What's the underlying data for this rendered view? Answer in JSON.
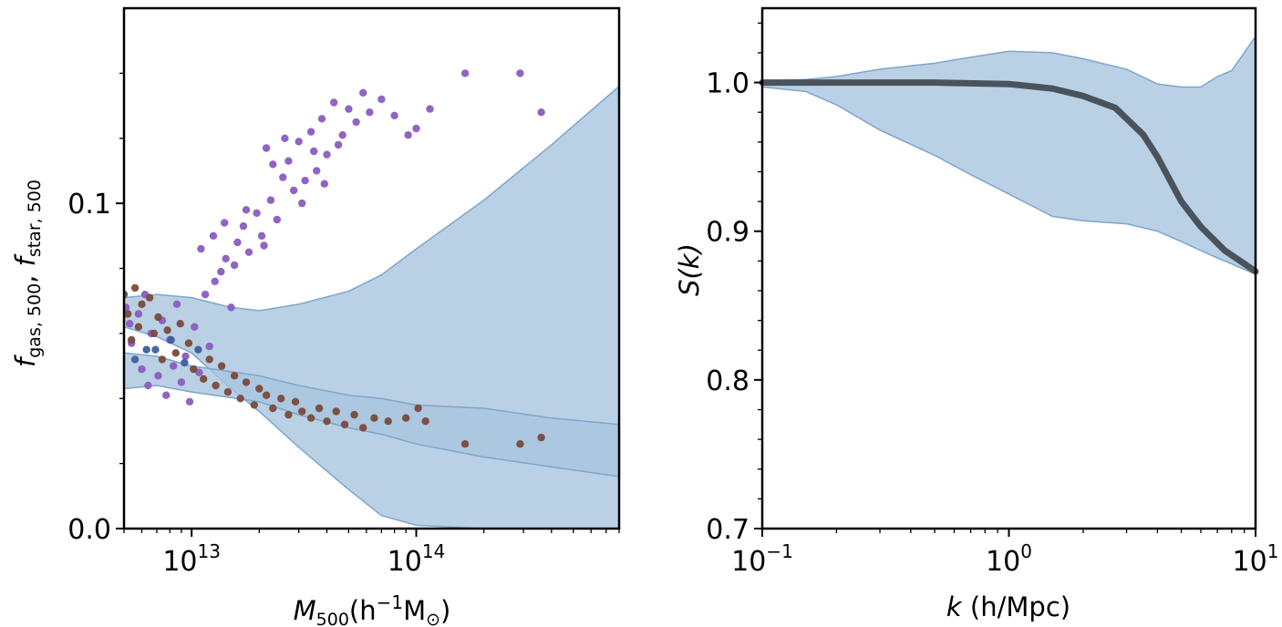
{
  "chart_data": [
    {
      "type": "scatter",
      "xscale": "log",
      "xlim": [
        5000000000000.0,
        800000000000000.0
      ],
      "ylim": [
        0.0,
        0.16
      ],
      "xticks": [
        {
          "value": 10000000000000.0,
          "base": "10",
          "exp": "13"
        },
        {
          "value": 100000000000000.0,
          "base": "10",
          "exp": "14"
        }
      ],
      "yticks": [
        {
          "value": 0.0,
          "label": "0.0"
        },
        {
          "value": 0.1,
          "label": "0.1"
        }
      ],
      "xlabel": {
        "main": "M",
        "sub": "500",
        "open": "(h",
        "exp": "−1",
        "unit": "M",
        "unit_sub": "⊙",
        "close": ")"
      },
      "ylabel": {
        "f1": "f",
        "sub1": "gas, 500",
        "sep": ",  ",
        "f2": "f",
        "sub2": "star, 500"
      },
      "colors": {
        "band": "#a9c4df",
        "band_edge": "#7fa6cc",
        "star_points": "#8a5cc0",
        "gas_points": "#7a4a3a",
        "overlap_points": "#3e5f9a"
      },
      "bands": [
        {
          "name": "gas-fraction-band",
          "x": [
            5000000000000.0,
            7000000000000.0,
            10000000000000.0,
            15000000000000.0,
            20000000000000.0,
            30000000000000.0,
            50000000000000.0,
            70000000000000.0,
            100000000000000.0,
            200000000000000.0,
            400000000000000.0,
            800000000000000.0
          ],
          "lower": [
            0.062,
            0.059,
            0.054,
            0.043,
            0.036,
            0.025,
            0.012,
            0.004,
            0.001,
            0.0,
            0.0,
            0.0
          ],
          "upper": [
            0.071,
            0.072,
            0.071,
            0.068,
            0.067,
            0.069,
            0.073,
            0.078,
            0.086,
            0.101,
            0.118,
            0.136
          ]
        },
        {
          "name": "star-fraction-band",
          "x": [
            5000000000000.0,
            7000000000000.0,
            10000000000000.0,
            20000000000000.0,
            30000000000000.0,
            50000000000000.0,
            70000000000000.0,
            100000000000000.0,
            200000000000000.0,
            400000000000000.0,
            800000000000000.0
          ],
          "lower": [
            0.043,
            0.044,
            0.042,
            0.039,
            0.035,
            0.031,
            0.029,
            0.026,
            0.022,
            0.019,
            0.016
          ],
          "upper": [
            0.054,
            0.053,
            0.05,
            0.047,
            0.044,
            0.041,
            0.04,
            0.038,
            0.037,
            0.034,
            0.032
          ]
        }
      ],
      "series": [
        {
          "name": "f_gas,500",
          "points": [
            [
              5100000000000.0,
              0.068
            ],
            [
              5300000000000.0,
              0.063
            ],
            [
              5400000000000.0,
              0.057
            ],
            [
              5600000000000.0,
              0.052
            ],
            [
              5800000000000.0,
              0.066
            ],
            [
              6000000000000.0,
              0.049
            ],
            [
              6200000000000.0,
              0.072
            ],
            [
              6400000000000.0,
              0.044
            ],
            [
              6600000000000.0,
              0.06
            ],
            [
              6900000000000.0,
              0.055
            ],
            [
              7100000000000.0,
              0.047
            ],
            [
              7400000000000.0,
              0.064
            ],
            [
              7700000000000.0,
              0.041
            ],
            [
              8000000000000.0,
              0.058
            ],
            [
              8300000000000.0,
              0.05
            ],
            [
              8600000000000.0,
              0.069
            ],
            [
              9000000000000.0,
              0.045
            ],
            [
              9400000000000.0,
              0.053
            ],
            [
              9800000000000.0,
              0.039
            ],
            [
              10300000000000.0,
              0.062
            ],
            [
              10800000000000.0,
              0.048
            ],
            [
              11500000000000.0,
              0.072
            ],
            [
              12000000000000.0,
              0.056
            ],
            [
              12700000000000.0,
              0.076
            ],
            [
              13500000000000.0,
              0.079
            ],
            [
              14200000000000.0,
              0.083
            ],
            [
              15000000000000.0,
              0.068
            ],
            [
              16000000000000.0,
              0.088
            ],
            [
              17000000000000.0,
              0.093
            ],
            [
              18000000000000.0,
              0.085
            ],
            [
              19500000000000.0,
              0.097
            ],
            [
              20500000000000.0,
              0.09
            ],
            [
              21500000000000.0,
              0.117
            ],
            [
              22500000000000.0,
              0.101
            ],
            [
              24000000000000.0,
              0.095
            ],
            [
              25500000000000.0,
              0.108
            ],
            [
              27000000000000.0,
              0.113
            ],
            [
              28500000000000.0,
              0.104
            ],
            [
              30000000000000.0,
              0.119
            ],
            [
              32000000000000.0,
              0.107
            ],
            [
              34000000000000.0,
              0.122
            ],
            [
              36000000000000.0,
              0.11
            ],
            [
              38000000000000.0,
              0.126
            ],
            [
              40000000000000.0,
              0.115
            ],
            [
              43000000000000.0,
              0.131
            ],
            [
              47000000000000.0,
              0.121
            ],
            [
              50000000000000.0,
              0.129
            ],
            [
              54000000000000.0,
              0.125
            ],
            [
              58000000000000.0,
              0.134
            ],
            [
              62000000000000.0,
              0.128
            ],
            [
              70000000000000.0,
              0.132
            ],
            [
              80000000000000.0,
              0.127
            ],
            [
              92000000000000.0,
              0.121
            ],
            [
              100000000000000.0,
              0.123
            ],
            [
              115000000000000.0,
              0.129
            ],
            [
              165000000000000.0,
              0.14
            ],
            [
              290000000000000.0,
              0.14
            ],
            [
              360000000000000.0,
              0.128
            ],
            [
              11000000000000.0,
              0.086
            ],
            [
              12500000000000.0,
              0.09
            ],
            [
              14000000000000.0,
              0.094
            ],
            [
              15500000000000.0,
              0.081
            ],
            [
              17500000000000.0,
              0.098
            ],
            [
              21000000000000.0,
              0.087
            ],
            [
              23000000000000.0,
              0.112
            ],
            [
              26000000000000.0,
              0.12
            ],
            [
              31000000000000.0,
              0.1
            ],
            [
              35000000000000.0,
              0.116
            ],
            [
              39000000000000.0,
              0.106
            ],
            [
              45000000000000.0,
              0.118
            ]
          ]
        },
        {
          "name": "f_star,500",
          "points": [
            [
              5000000000000.0,
              0.072
            ],
            [
              5200000000000.0,
              0.066
            ],
            [
              5400000000000.0,
              0.058
            ],
            [
              5600000000000.0,
              0.074
            ],
            [
              5800000000000.0,
              0.062
            ],
            [
              6000000000000.0,
              0.069
            ],
            [
              6300000000000.0,
              0.055
            ],
            [
              6500000000000.0,
              0.071
            ],
            [
              6800000000000.0,
              0.06
            ],
            [
              7100000000000.0,
              0.065
            ],
            [
              7400000000000.0,
              0.052
            ],
            [
              7800000000000.0,
              0.061
            ],
            [
              8100000000000.0,
              0.058
            ],
            [
              8500000000000.0,
              0.054
            ],
            [
              8900000000000.0,
              0.063
            ],
            [
              9300000000000.0,
              0.051
            ],
            [
              9700000000000.0,
              0.057
            ],
            [
              10200000000000.0,
              0.049
            ],
            [
              10700000000000.0,
              0.055
            ],
            [
              11300000000000.0,
              0.046
            ],
            [
              12000000000000.0,
              0.052
            ],
            [
              12800000000000.0,
              0.044
            ],
            [
              13600000000000.0,
              0.05
            ],
            [
              14500000000000.0,
              0.042
            ],
            [
              15500000000000.0,
              0.047
            ],
            [
              16500000000000.0,
              0.04
            ],
            [
              17500000000000.0,
              0.045
            ],
            [
              19000000000000.0,
              0.038
            ],
            [
              20000000000000.0,
              0.043
            ],
            [
              21500000000000.0,
              0.041
            ],
            [
              23000000000000.0,
              0.037
            ],
            [
              25000000000000.0,
              0.04
            ],
            [
              27000000000000.0,
              0.035
            ],
            [
              29000000000000.0,
              0.039
            ],
            [
              31000000000000.0,
              0.036
            ],
            [
              34000000000000.0,
              0.034
            ],
            [
              37000000000000.0,
              0.037
            ],
            [
              40000000000000.0,
              0.033
            ],
            [
              44000000000000.0,
              0.036
            ],
            [
              48000000000000.0,
              0.032
            ],
            [
              53000000000000.0,
              0.035
            ],
            [
              58000000000000.0,
              0.031
            ],
            [
              65000000000000.0,
              0.034
            ],
            [
              75000000000000.0,
              0.033
            ],
            [
              90000000000000.0,
              0.034
            ],
            [
              102000000000000.0,
              0.037
            ],
            [
              110000000000000.0,
              0.033
            ],
            [
              165000000000000.0,
              0.026
            ],
            [
              290000000000000.0,
              0.026
            ],
            [
              360000000000000.0,
              0.028
            ]
          ]
        }
      ]
    },
    {
      "type": "line",
      "xscale": "log",
      "xlim": [
        0.1,
        10
      ],
      "ylim": [
        0.7,
        1.05
      ],
      "xticks": [
        {
          "value": 0.1,
          "base": "10",
          "exp": "−1"
        },
        {
          "value": 1,
          "base": "10",
          "exp": "0"
        },
        {
          "value": 10,
          "base": "10",
          "exp": "1"
        }
      ],
      "yticks": [
        {
          "value": 0.7,
          "label": "0.7"
        },
        {
          "value": 0.8,
          "label": "0.8"
        },
        {
          "value": 0.9,
          "label": "0.9"
        },
        {
          "value": 1.0,
          "label": "1.0"
        }
      ],
      "xlabel": {
        "var": "k",
        "rest": " (h/Mpc)"
      },
      "ylabel": {
        "text": "S(k)"
      },
      "colors": {
        "band": "#a9c4df",
        "band_edge": "#7fa6cc",
        "line": "#4a535c"
      },
      "band": {
        "x": [
          0.1,
          0.15,
          0.2,
          0.3,
          0.5,
          0.7,
          1.0,
          1.5,
          2.0,
          3.0,
          4.0,
          5.0,
          6.0,
          7.0,
          8.0,
          10.0
        ],
        "lower": [
          0.997,
          0.994,
          0.985,
          0.968,
          0.951,
          0.938,
          0.925,
          0.91,
          0.907,
          0.905,
          0.9,
          0.893,
          0.887,
          0.882,
          0.878,
          0.871
        ],
        "upper": [
          1.001,
          1.002,
          1.004,
          1.009,
          1.013,
          1.017,
          1.021,
          1.02,
          1.016,
          1.009,
          0.999,
          0.997,
          0.997,
          1.004,
          1.008,
          1.031
        ]
      },
      "series": [
        {
          "name": "S(k)",
          "x": [
            0.1,
            0.2,
            0.5,
            1.0,
            1.5,
            2.0,
            2.7,
            3.5,
            4.0,
            5.0,
            6.0,
            7.5,
            10.0
          ],
          "y": [
            1.0,
            1.0,
            1.0,
            0.999,
            0.996,
            0.991,
            0.983,
            0.965,
            0.95,
            0.92,
            0.903,
            0.887,
            0.873
          ]
        }
      ]
    }
  ]
}
